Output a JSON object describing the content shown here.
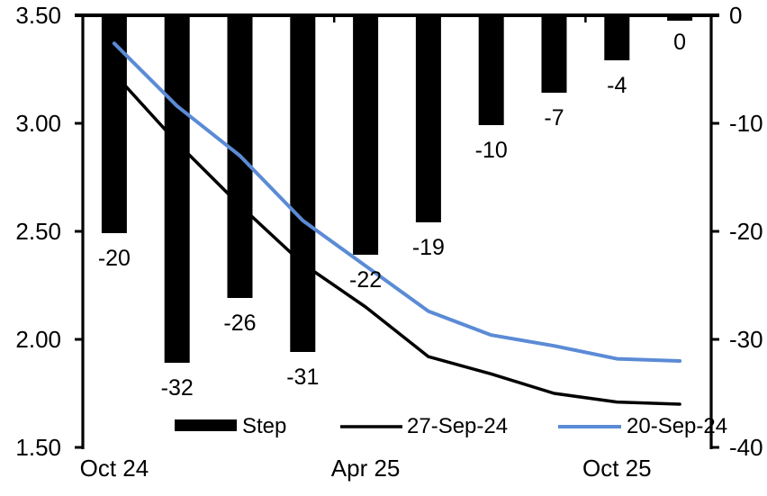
{
  "chart_data": {
    "type": "combo_bar_line",
    "title": "",
    "background": "#ffffff",
    "axis_color": "#000000",
    "x_axis": {
      "n_categories": 10,
      "tick_labels": [
        {
          "label": "Oct 24",
          "category_index": 0
        },
        {
          "label": "Apr 25",
          "category_index": 4
        },
        {
          "label": "Oct 25",
          "category_index": 8
        }
      ],
      "boundary_tick_indices": [
        4,
        8
      ]
    },
    "left_y_axis": {
      "min": 1.5,
      "max": 3.5,
      "ticks": [
        {
          "label": "3.50",
          "value": 3.5
        },
        {
          "label": "3.00",
          "value": 3.0
        },
        {
          "label": "2.50",
          "value": 2.5
        },
        {
          "label": "2.00",
          "value": 2.0
        },
        {
          "label": "1.50",
          "value": 1.5
        }
      ]
    },
    "right_y_axis": {
      "min": -40,
      "max": 0,
      "ticks": [
        {
          "label": "0",
          "value": 0
        },
        {
          "label": "-10",
          "value": -10
        },
        {
          "label": "-20",
          "value": -20
        },
        {
          "label": "-30",
          "value": -30
        },
        {
          "label": "-40",
          "value": -40
        }
      ]
    },
    "bar_series": {
      "name": "Step",
      "axis": "right",
      "color": "#000000",
      "values": [
        -20,
        -32,
        -26,
        -31,
        -22,
        -19,
        -10,
        -7,
        -4,
        0
      ],
      "data_labels": [
        "-20",
        "-32",
        "-26",
        "-31",
        "-22",
        "-19",
        "-10",
        "-7",
        "-4",
        "0"
      ]
    },
    "line_series": [
      {
        "name": "27-Sep-24",
        "axis": "left",
        "color": "#000000",
        "stroke_width": 3.5,
        "values": [
          3.23,
          2.91,
          2.62,
          2.35,
          2.15,
          1.92,
          1.84,
          1.75,
          1.71,
          1.7
        ]
      },
      {
        "name": "20-Sep-24",
        "axis": "left",
        "color": "#5B8BD5",
        "stroke_width": 4,
        "values": [
          3.37,
          3.08,
          2.85,
          2.55,
          2.34,
          2.13,
          2.02,
          1.97,
          1.91,
          1.9
        ]
      }
    ],
    "legend": [
      {
        "label": "Step",
        "swatch": "box",
        "color": "#000000"
      },
      {
        "label": "27-Sep-24",
        "swatch": "line",
        "color": "#000000"
      },
      {
        "label": "20-Sep-24",
        "swatch": "line",
        "color": "#5B8BD5"
      }
    ]
  }
}
